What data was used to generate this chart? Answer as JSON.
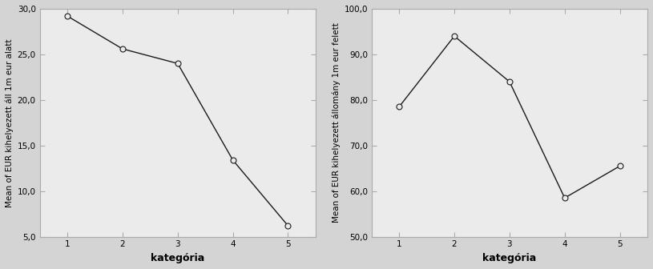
{
  "left": {
    "x": [
      1,
      2,
      3,
      4,
      5
    ],
    "y": [
      29.2,
      25.6,
      24.0,
      13.4,
      6.2
    ],
    "ylabel": "Mean of EUR kihelyezett áll 1m eur alatt",
    "xlabel": "kategória",
    "ylim": [
      5.0,
      30.0
    ],
    "yticks": [
      5.0,
      10.0,
      15.0,
      20.0,
      25.0,
      30.0
    ],
    "xticks": [
      1,
      2,
      3,
      4,
      5
    ]
  },
  "right": {
    "x": [
      1,
      2,
      3,
      4,
      5
    ],
    "y": [
      78.5,
      94.0,
      84.0,
      58.5,
      65.5
    ],
    "ylabel": "Mean of EUR kihelyezett állomány 1m eur felett",
    "xlabel": "kategória",
    "ylim": [
      50.0,
      100.0
    ],
    "yticks": [
      50.0,
      60.0,
      70.0,
      80.0,
      90.0,
      100.0
    ],
    "xticks": [
      1,
      2,
      3,
      4,
      5
    ]
  },
  "fig_bg_color": "#d4d4d4",
  "plot_bg_color": "#ebebeb",
  "line_color": "#1a1a1a",
  "marker": "o",
  "marker_facecolor": "#ebebeb",
  "marker_edgecolor": "#1a1a1a",
  "marker_size": 5,
  "line_width": 1.0,
  "tick_label_fontsize": 7.5,
  "axis_label_fontsize": 9,
  "ylabel_fontsize": 7.5,
  "spine_color": "#aaaaaa"
}
